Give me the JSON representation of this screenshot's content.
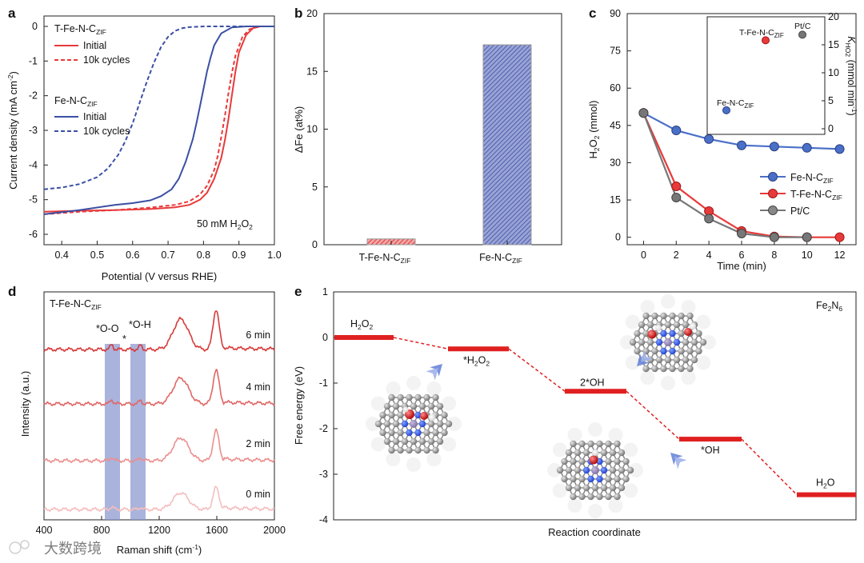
{
  "panel_labels": {
    "a": "a",
    "b": "b",
    "c": "c",
    "d": "d",
    "e": "e"
  },
  "watermark": "大数跨境",
  "chart_data": [
    {
      "id": "a",
      "type": "line",
      "xlabel": "Potential (V versus RHE)",
      "ylabel": "Current density (mA cm",
      "ylabel_sup": "-2",
      "ylabel_end": ")",
      "xlim": [
        0.35,
        1.0
      ],
      "ylim": [
        -6.3,
        0.3
      ],
      "xticks": [
        "0.4",
        "0.5",
        "0.6",
        "0.7",
        "0.8",
        "0.9",
        "1.0"
      ],
      "yticks": [
        "0",
        "-1",
        "-2",
        "-3",
        "-4",
        "-5",
        "-6"
      ],
      "annotation": {
        "text": "50 mM H",
        "sub": "2",
        "text2": "O",
        "sub2": "2"
      },
      "legend_groups": [
        {
          "title": "T-Fe-N-C",
          "title_sub": "ZIF",
          "entries": [
            "Initial",
            "10k cycles"
          ]
        },
        {
          "title": "Fe-N-C",
          "title_sub": "ZIF",
          "entries": [
            "Initial",
            "10k cycles"
          ]
        }
      ],
      "series": [
        {
          "group": "T-Fe-N-C ZIF",
          "label": "Initial",
          "color": "#e83a3a",
          "dash": false,
          "x": [
            0.35,
            0.45,
            0.55,
            0.65,
            0.72,
            0.76,
            0.79,
            0.81,
            0.83,
            0.85,
            0.86,
            0.87,
            0.88,
            0.89,
            0.9,
            0.92,
            0.94,
            0.96,
            1.0
          ],
          "y": [
            -5.35,
            -5.32,
            -5.3,
            -5.27,
            -5.22,
            -5.15,
            -5.0,
            -4.8,
            -4.4,
            -3.8,
            -3.3,
            -2.7,
            -2.0,
            -1.3,
            -0.75,
            -0.25,
            -0.05,
            0.0,
            0.0
          ]
        },
        {
          "group": "T-Fe-N-C ZIF",
          "label": "10k cycles",
          "color": "#e83a3a",
          "dash": true,
          "x": [
            0.35,
            0.45,
            0.55,
            0.65,
            0.72,
            0.76,
            0.79,
            0.81,
            0.83,
            0.84,
            0.85,
            0.86,
            0.87,
            0.88,
            0.89,
            0.91,
            0.93,
            0.96,
            1.0
          ],
          "y": [
            -5.42,
            -5.35,
            -5.3,
            -5.23,
            -5.15,
            -5.05,
            -4.85,
            -4.6,
            -4.15,
            -3.75,
            -3.2,
            -2.6,
            -1.95,
            -1.35,
            -0.85,
            -0.3,
            -0.08,
            0.0,
            0.0
          ]
        },
        {
          "group": "Fe-N-C ZIF",
          "label": "Initial",
          "color": "#3b4fa3",
          "dash": false,
          "x": [
            0.35,
            0.45,
            0.55,
            0.6,
            0.65,
            0.68,
            0.71,
            0.73,
            0.75,
            0.77,
            0.78,
            0.79,
            0.8,
            0.81,
            0.82,
            0.83,
            0.85,
            0.88,
            0.92,
            1.0
          ],
          "y": [
            -5.42,
            -5.3,
            -5.15,
            -5.1,
            -5.02,
            -4.9,
            -4.7,
            -4.4,
            -3.9,
            -3.25,
            -2.8,
            -2.3,
            -1.8,
            -1.3,
            -0.9,
            -0.55,
            -0.2,
            -0.03,
            0.0,
            0.0
          ]
        },
        {
          "group": "Fe-N-C ZIF",
          "label": "10k cycles",
          "color": "#3b4fa3",
          "dash": true,
          "x": [
            0.35,
            0.4,
            0.45,
            0.5,
            0.53,
            0.56,
            0.58,
            0.6,
            0.62,
            0.64,
            0.66,
            0.68,
            0.7,
            0.72,
            0.74,
            0.76,
            0.8,
            0.85,
            1.0
          ],
          "y": [
            -4.7,
            -4.65,
            -4.55,
            -4.35,
            -4.1,
            -3.7,
            -3.3,
            -2.8,
            -2.2,
            -1.6,
            -1.05,
            -0.6,
            -0.3,
            -0.13,
            -0.05,
            -0.02,
            0.0,
            0.0,
            0.0
          ]
        }
      ]
    },
    {
      "id": "b",
      "type": "bar",
      "ylabel": "ΔFe (at%)",
      "ylim": [
        0,
        20
      ],
      "yticks": [
        "0",
        "5",
        "10",
        "15",
        "20"
      ],
      "categories": [
        {
          "main": "T-Fe-N-C",
          "sub": "ZIF"
        },
        {
          "main": "Fe-N-C",
          "sub": "ZIF"
        }
      ],
      "values": [
        0.5,
        17.3
      ],
      "colors": [
        "#e83a3a",
        "#3b4fa3"
      ]
    },
    {
      "id": "c",
      "type": "line",
      "xlabel": "Time (min)",
      "ylabel": "H",
      "ylabel_sub": "2",
      "ylabel_end": "O",
      "ylabel_sub2": "2",
      "ylabel_tail": " (mmol)",
      "xlim": [
        -1,
        13
      ],
      "ylim": [
        -3,
        90
      ],
      "xticks": [
        "0",
        "2",
        "4",
        "6",
        "8",
        "10",
        "12"
      ],
      "yticks": [
        "0",
        "15",
        "30",
        "45",
        "60",
        "75",
        "90"
      ],
      "legend": [
        {
          "label": "Fe-N-C",
          "sub": "ZIF",
          "color": "#4a6fc8"
        },
        {
          "label": "T-Fe-N-C",
          "sub": "ZIF",
          "color": "#e83a3a"
        },
        {
          "label": "Pt/C",
          "sub": "",
          "color": "#777777"
        }
      ],
      "series": [
        {
          "name": "Fe-N-C ZIF",
          "color": "#4a6fc8",
          "x": [
            0,
            2,
            4,
            6,
            8,
            10,
            12
          ],
          "y": [
            50,
            43,
            39.5,
            37,
            36.5,
            36,
            35.5
          ]
        },
        {
          "name": "T-Fe-N-C ZIF",
          "color": "#e83a3a",
          "x": [
            0,
            2,
            4,
            6,
            8,
            10,
            12
          ],
          "y": [
            50,
            20.5,
            10.5,
            2.5,
            0.3,
            0,
            0
          ]
        },
        {
          "name": "Pt/C",
          "color": "#777777",
          "x": [
            0,
            2,
            4,
            6,
            8,
            10
          ],
          "y": [
            50,
            16,
            7.5,
            1.5,
            0,
            0
          ]
        }
      ],
      "inset": {
        "ylabel": "K",
        "ylabel_sub": "HO2",
        "ylabel_tail": " (mmol min",
        "ylabel_sup": "-1",
        "ylabel_end": ")",
        "ylim": [
          -1,
          20
        ],
        "yticks": [
          "0",
          "5",
          "10",
          "15",
          "20"
        ],
        "points": [
          {
            "label": "T-Fe-N-C",
            "sub": "ZIF",
            "value": 15.8,
            "color": "#e83a3a"
          },
          {
            "label": "Pt/C",
            "sub": "",
            "value": 16.8,
            "color": "#777777"
          },
          {
            "label": "Fe-N-C",
            "sub": "ZIF",
            "value": 3.3,
            "color": "#4a6fc8"
          }
        ]
      }
    },
    {
      "id": "d",
      "type": "line",
      "title": "T-Fe-N-C",
      "title_sub": "ZIF",
      "xlabel": "Raman shift (cm",
      "xlabel_sup": "-1",
      "xlabel_end": ")",
      "ylabel": "Intensity (a.u.)",
      "xlim": [
        400,
        2000
      ],
      "xticks": [
        "400",
        "800",
        "1200",
        "1600",
        "2000"
      ],
      "annotations": [
        {
          "text": "*O-O",
          "sub": "*"
        },
        {
          "text": "*O-H",
          "sub": ""
        }
      ],
      "series": [
        {
          "name": "6 min",
          "color": "#d73a3a"
        },
        {
          "name": "4 min",
          "color": "#e06666"
        },
        {
          "name": "2 min",
          "color": "#eb8f8f"
        },
        {
          "name": "0 min",
          "color": "#f4bebe"
        }
      ]
    },
    {
      "id": "e",
      "type": "line",
      "title": "Fe",
      "title_sub1": "2",
      "title_mid": "N",
      "title_sub2": "6",
      "xlabel": "Reaction coordinate",
      "ylabel": "Free energy (eV)",
      "ylim": [
        -4,
        1
      ],
      "yticks": [
        "1",
        "0",
        "-1",
        "-2",
        "-3",
        "-4"
      ],
      "levels": [
        {
          "label": "H",
          "sub": "2",
          "label2": "O",
          "sub2": "2",
          "energy": 0.0
        },
        {
          "label": "*H",
          "sub": "2",
          "label2": "O",
          "sub2": "2",
          "energy": -0.25
        },
        {
          "label": "2*OH",
          "sub": "",
          "label2": "",
          "sub2": "",
          "energy": -1.18
        },
        {
          "label": "*OH",
          "sub": "",
          "label2": "",
          "sub2": "",
          "energy": -2.23
        },
        {
          "label": "H",
          "sub": "2",
          "label2": "O",
          "sub2": "",
          "energy": -3.45
        }
      ],
      "color": "#e02020"
    }
  ]
}
